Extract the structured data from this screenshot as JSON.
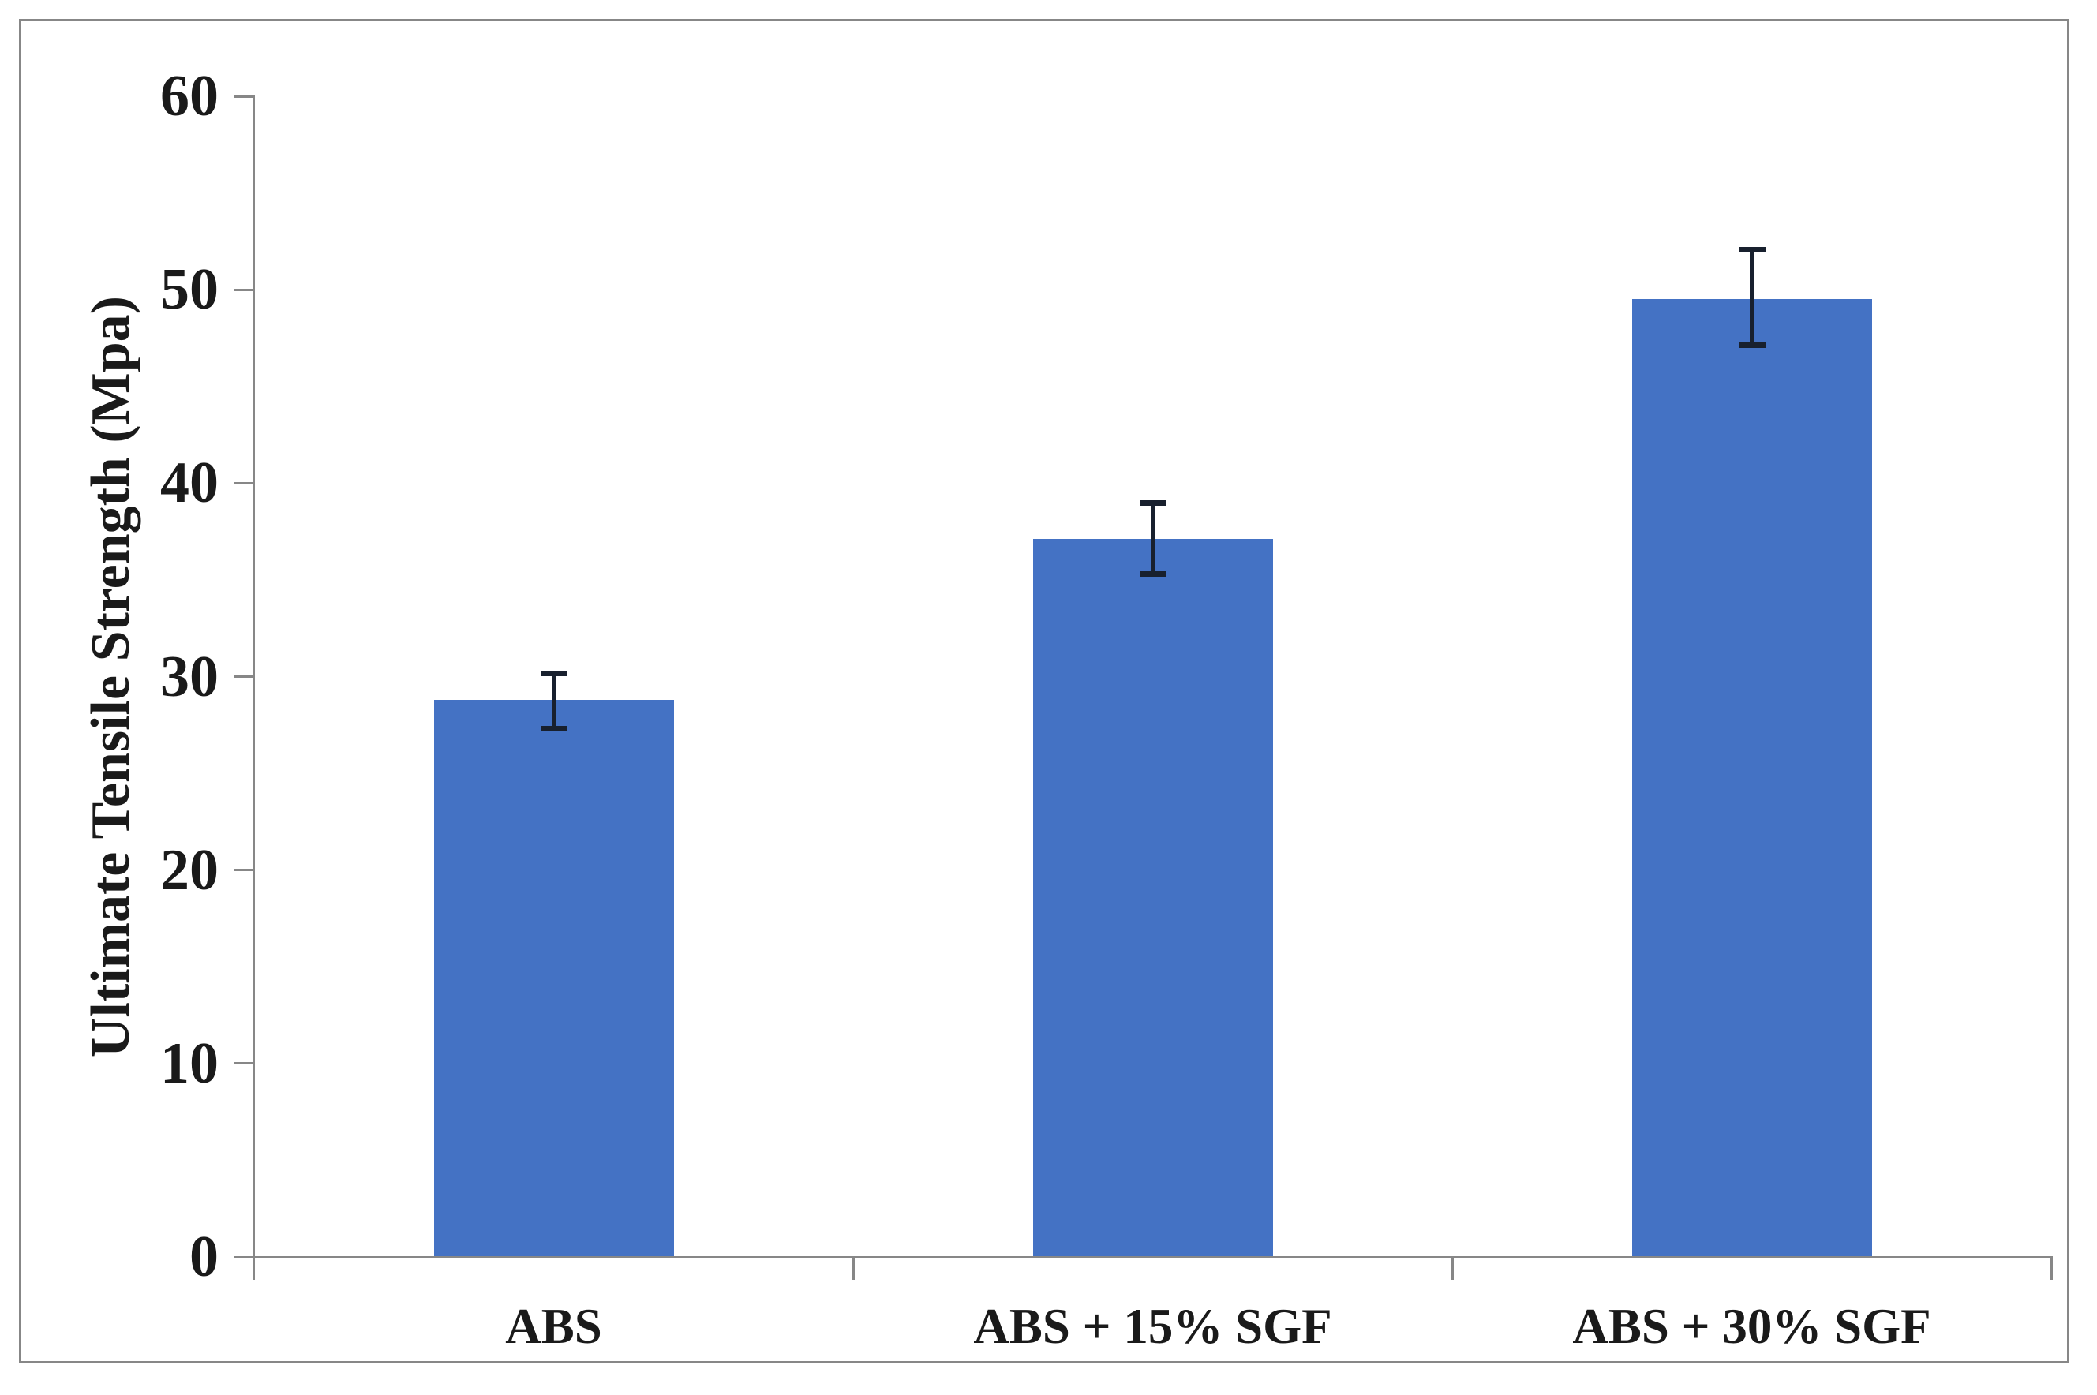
{
  "chart_data": {
    "type": "bar",
    "title": "",
    "xlabel": "",
    "ylabel": "Ultimate Tensile Strength (Mpa)",
    "categories": [
      "ABS",
      "ABS + 15% SGF",
      "ABS + 30% SGF"
    ],
    "values": [
      28.8,
      37.1,
      49.5
    ],
    "error_plus": [
      1.4,
      1.9,
      2.6
    ],
    "error_minus": [
      1.5,
      1.8,
      2.4
    ],
    "ylim": [
      0,
      60
    ],
    "ytick_step": 10,
    "yticks": [
      0,
      10,
      20,
      30,
      40,
      50,
      60
    ],
    "grid": false,
    "legend": false,
    "bar_color": "#4472C4",
    "error_bar_color": "#18202e",
    "axis_color": "#878787",
    "text_color": "#1a1a1a",
    "border_color": "#878787",
    "background": "#ffffff"
  }
}
